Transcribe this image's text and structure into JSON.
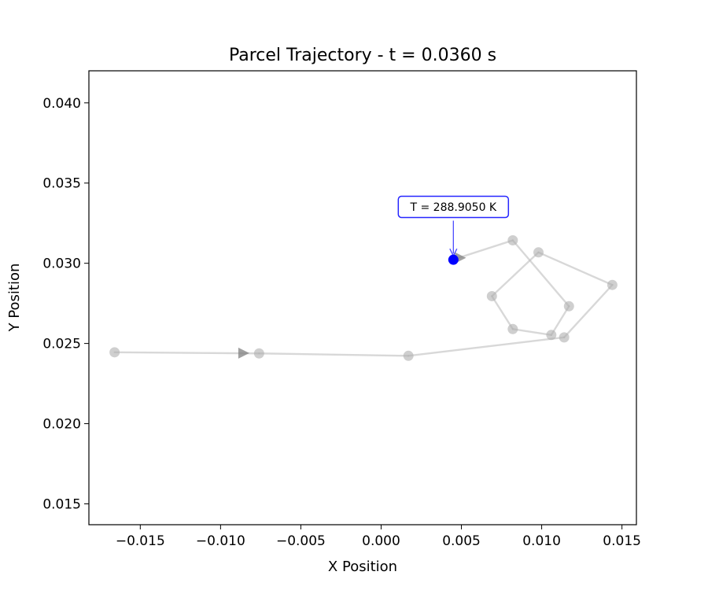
{
  "chart_data": {
    "type": "line",
    "title": "Parcel Trajectory - t = 0.0360 s",
    "xlabel": "X Position",
    "ylabel": "Y Position",
    "xlim": [
      -0.0182,
      0.0159
    ],
    "ylim": [
      0.0137,
      0.042
    ],
    "xticks": [
      -0.015,
      -0.01,
      -0.005,
      0.0,
      0.005,
      0.01,
      0.015
    ],
    "xtick_labels": [
      "−0.015",
      "−0.010",
      "−0.005",
      "0.000",
      "0.005",
      "0.010",
      "0.015"
    ],
    "yticks": [
      0.015,
      0.02,
      0.025,
      0.03,
      0.035,
      0.04
    ],
    "ytick_labels": [
      "0.015",
      "0.020",
      "0.025",
      "0.030",
      "0.035",
      "0.040"
    ],
    "grid": false,
    "path": {
      "x": [
        -0.0166,
        -0.0076,
        0.0017,
        0.0114,
        0.0144,
        0.0098,
        0.0069,
        0.0082,
        0.0106,
        0.0117,
        0.0082,
        0.0047
      ],
      "y": [
        0.02445,
        0.02438,
        0.02423,
        0.02538,
        0.02865,
        0.03068,
        0.02795,
        0.0259,
        0.02553,
        0.02732,
        0.03143,
        0.0303
      ]
    },
    "direction_arrows": [
      {
        "x": -0.0086,
        "y": 0.0244
      },
      {
        "x": 0.0049,
        "y": 0.03034
      }
    ],
    "current_point": {
      "x": 0.0045,
      "y": 0.03022,
      "color": "#0000ff"
    },
    "annotation": {
      "text": "T = 288.9050 K",
      "x": 0.0045,
      "y": 0.03022,
      "border_color": "#0000ff"
    },
    "colors": {
      "path": "#bfbfbf",
      "marker": "#b0b0b0",
      "arrow": "#808080"
    }
  }
}
